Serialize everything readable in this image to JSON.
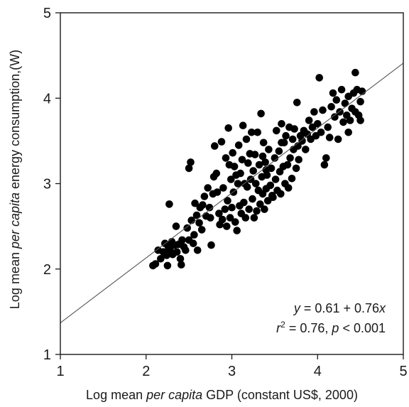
{
  "chart_data": {
    "type": "scatter",
    "title": "",
    "xlabel": {
      "parts": [
        {
          "text": "Log mean ",
          "style": "normal"
        },
        {
          "text": "per capita",
          "style": "italic"
        },
        {
          "text": " GDP (constant US$, 2000)",
          "style": "normal"
        }
      ]
    },
    "ylabel": {
      "parts": [
        {
          "text": "Log mean ",
          "style": "normal"
        },
        {
          "text": "per capita",
          "style": "italic"
        },
        {
          "text": " energy consumption,(W)",
          "style": "normal"
        }
      ]
    },
    "xlim": [
      1,
      5
    ],
    "ylim": [
      1,
      5
    ],
    "xticks": [
      1,
      2,
      3,
      4,
      5
    ],
    "yticks": [
      1,
      2,
      3,
      4,
      5
    ],
    "grid": false,
    "legend": "none",
    "fit_line": {
      "intercept": 0.61,
      "slope": 0.76
    },
    "annotation": {
      "line1": [
        {
          "text": "y",
          "style": "italic"
        },
        {
          "text": " = 0.61 + 0.76",
          "style": "normal"
        },
        {
          "text": "x",
          "style": "italic"
        }
      ],
      "line2": [
        {
          "text": "r",
          "style": "italic"
        },
        {
          "text": "2",
          "style": "sup"
        },
        {
          "text": " = 0.76, ",
          "style": "normal"
        },
        {
          "text": "p",
          "style": "italic"
        },
        {
          "text": " < 0.001",
          "style": "normal"
        }
      ]
    },
    "marker_color": "#000000",
    "line_color": "#555555",
    "points": [
      [
        2.08,
        2.04
      ],
      [
        2.11,
        2.06
      ],
      [
        2.14,
        2.22
      ],
      [
        2.17,
        2.12
      ],
      [
        2.2,
        2.2
      ],
      [
        2.22,
        2.3
      ],
      [
        2.24,
        2.16
      ],
      [
        2.25,
        2.04
      ],
      [
        2.26,
        2.26
      ],
      [
        2.27,
        2.76
      ],
      [
        2.28,
        2.22
      ],
      [
        2.3,
        2.32
      ],
      [
        2.31,
        2.17
      ],
      [
        2.33,
        2.28
      ],
      [
        2.35,
        2.5
      ],
      [
        2.36,
        2.2
      ],
      [
        2.38,
        2.29
      ],
      [
        2.4,
        2.12
      ],
      [
        2.41,
        2.05
      ],
      [
        2.42,
        2.34
      ],
      [
        2.44,
        2.26
      ],
      [
        2.46,
        2.22
      ],
      [
        2.48,
        2.48
      ],
      [
        2.5,
        2.34
      ],
      [
        2.5,
        3.18
      ],
      [
        2.52,
        3.25
      ],
      [
        2.53,
        2.57
      ],
      [
        2.55,
        2.3
      ],
      [
        2.56,
        2.4
      ],
      [
        2.57,
        2.77
      ],
      [
        2.59,
        2.63
      ],
      [
        2.6,
        2.22
      ],
      [
        2.62,
        2.54
      ],
      [
        2.63,
        2.72
      ],
      [
        2.65,
        2.46
      ],
      [
        2.66,
        2.75
      ],
      [
        2.68,
        2.85
      ],
      [
        2.7,
        2.62
      ],
      [
        2.72,
        2.95
      ],
      [
        2.74,
        2.72
      ],
      [
        2.75,
        2.6
      ],
      [
        2.76,
        2.28
      ],
      [
        2.78,
        2.88
      ],
      [
        2.79,
        3.08
      ],
      [
        2.8,
        3.44
      ],
      [
        2.82,
        3.12
      ],
      [
        2.83,
        2.9
      ],
      [
        2.85,
        2.65
      ],
      [
        2.86,
        2.52
      ],
      [
        2.88,
        3.49
      ],
      [
        2.89,
        2.58
      ],
      [
        2.9,
        2.95
      ],
      [
        2.92,
        2.7
      ],
      [
        2.93,
        3.3
      ],
      [
        2.94,
        2.5
      ],
      [
        2.95,
        2.8
      ],
      [
        2.96,
        3.65
      ],
      [
        2.97,
        3.22
      ],
      [
        2.98,
        2.6
      ],
      [
        2.99,
        3.05
      ],
      [
        3.0,
        2.72
      ],
      [
        3.01,
        3.36
      ],
      [
        3.02,
        2.9
      ],
      [
        3.03,
        3.2
      ],
      [
        3.04,
        2.55
      ],
      [
        3.05,
        3.1
      ],
      [
        3.06,
        2.45
      ],
      [
        3.07,
        3.0
      ],
      [
        3.08,
        3.45
      ],
      [
        3.09,
        2.74
      ],
      [
        3.1,
        3.12
      ],
      [
        3.11,
        2.65
      ],
      [
        3.12,
        3.28
      ],
      [
        3.13,
        3.68
      ],
      [
        3.14,
        2.78
      ],
      [
        3.15,
        3.0
      ],
      [
        3.16,
        2.6
      ],
      [
        3.17,
        3.52
      ],
      [
        3.18,
        2.96
      ],
      [
        3.19,
        3.24
      ],
      [
        3.2,
        2.7
      ],
      [
        3.21,
        3.35
      ],
      [
        3.22,
        3.05
      ],
      [
        3.23,
        3.6
      ],
      [
        3.24,
        2.82
      ],
      [
        3.25,
        3.15
      ],
      [
        3.26,
        2.6
      ],
      [
        3.27,
        3.34
      ],
      [
        3.28,
        3.0
      ],
      [
        3.29,
        2.68
      ],
      [
        3.3,
        3.6
      ],
      [
        3.31,
        2.92
      ],
      [
        3.32,
        3.22
      ],
      [
        3.33,
        2.76
      ],
      [
        3.34,
        3.82
      ],
      [
        3.35,
        3.08
      ],
      [
        3.36,
        2.88
      ],
      [
        3.37,
        3.48
      ],
      [
        3.38,
        2.7
      ],
      [
        3.39,
        3.25
      ],
      [
        3.4,
        2.94
      ],
      [
        3.41,
        3.1
      ],
      [
        3.42,
        2.8
      ],
      [
        3.43,
        3.4
      ],
      [
        3.45,
        2.98
      ],
      [
        3.46,
        3.18
      ],
      [
        3.48,
        2.84
      ],
      [
        3.5,
        3.3
      ],
      [
        3.51,
        3.05
      ],
      [
        3.52,
        3.62
      ],
      [
        3.53,
        2.92
      ],
      [
        3.55,
        3.38
      ],
      [
        3.56,
        3.14
      ],
      [
        3.57,
        2.88
      ],
      [
        3.58,
        3.7
      ],
      [
        3.6,
        3.2
      ],
      [
        3.61,
        3.48
      ],
      [
        3.62,
        3.0
      ],
      [
        3.63,
        3.56
      ],
      [
        3.65,
        3.22
      ],
      [
        3.66,
        2.95
      ],
      [
        3.67,
        3.66
      ],
      [
        3.68,
        3.3
      ],
      [
        3.7,
        3.06
      ],
      [
        3.71,
        3.52
      ],
      [
        3.72,
        3.4
      ],
      [
        3.73,
        3.64
      ],
      [
        3.75,
        3.18
      ],
      [
        3.76,
        3.95
      ],
      [
        3.77,
        3.44
      ],
      [
        3.78,
        3.28
      ],
      [
        3.8,
        3.56
      ],
      [
        3.82,
        3.5
      ],
      [
        3.84,
        3.62
      ],
      [
        3.86,
        3.4
      ],
      [
        3.88,
        3.58
      ],
      [
        3.9,
        3.74
      ],
      [
        3.92,
        3.52
      ],
      [
        3.94,
        3.66
      ],
      [
        3.96,
        3.84
      ],
      [
        3.98,
        3.56
      ],
      [
        4.0,
        3.7
      ],
      [
        4.02,
        4.24
      ],
      [
        4.04,
        3.6
      ],
      [
        4.06,
        3.86
      ],
      [
        4.08,
        3.22
      ],
      [
        4.1,
        3.3
      ],
      [
        4.12,
        3.66
      ],
      [
        4.14,
        3.54
      ],
      [
        4.16,
        3.9
      ],
      [
        4.18,
        4.06
      ],
      [
        4.2,
        3.78
      ],
      [
        4.22,
        3.98
      ],
      [
        4.24,
        3.52
      ],
      [
        4.26,
        3.84
      ],
      [
        4.28,
        4.1
      ],
      [
        4.3,
        3.72
      ],
      [
        4.32,
        3.94
      ],
      [
        4.34,
        3.8
      ],
      [
        4.36,
        4.02
      ],
      [
        4.38,
        3.74
      ],
      [
        4.4,
        3.88
      ],
      [
        4.42,
        4.06
      ],
      [
        4.44,
        4.3
      ],
      [
        4.46,
        4.1
      ],
      [
        4.48,
        3.8
      ],
      [
        4.5,
        3.96
      ],
      [
        4.52,
        4.08
      ],
      [
        4.5,
        3.74
      ],
      [
        4.36,
        3.6
      ],
      [
        4.44,
        3.84
      ],
      [
        3.58,
        3.48
      ],
      [
        3.47,
        2.86
      ],
      [
        3.4,
        3.16
      ],
      [
        3.36,
        3.32
      ]
    ]
  }
}
